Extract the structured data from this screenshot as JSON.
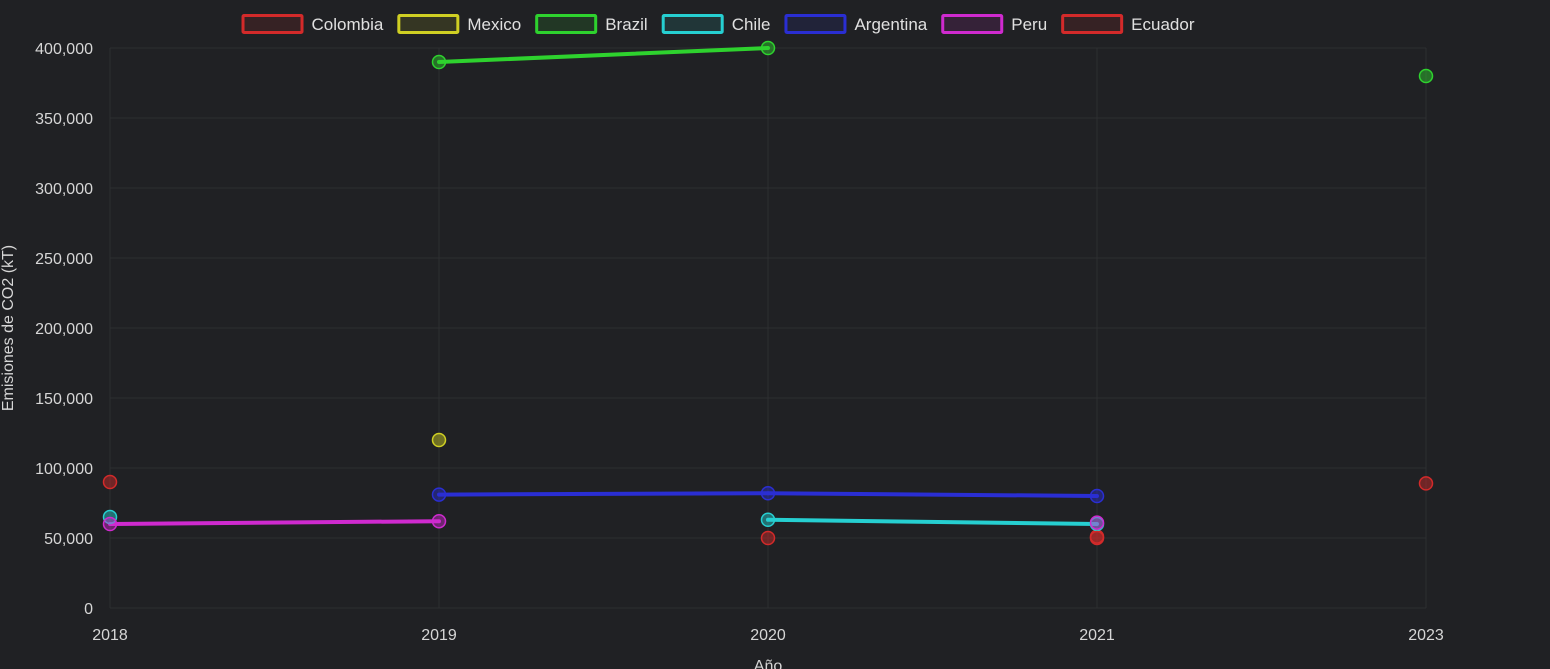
{
  "chart_data": {
    "type": "line",
    "xlabel": "Año",
    "ylabel": "Emisiones de CO2 (kT)",
    "x_categories": [
      "2018",
      "2019",
      "2020",
      "2021",
      "2023"
    ],
    "y_ticks": [
      "0",
      "50,000",
      "100,000",
      "150,000",
      "200,000",
      "250,000",
      "300,000",
      "350,000",
      "400,000"
    ],
    "ylim": [
      0,
      400000
    ],
    "grid": true,
    "legend_position": "top",
    "series": [
      {
        "name": "Colombia",
        "color": "#d32a2a",
        "points": [
          {
            "x": "2020",
            "y": 50000
          },
          {
            "x": "2021",
            "y": 51000
          }
        ]
      },
      {
        "name": "Mexico",
        "color": "#cfcf23",
        "points": [
          {
            "x": "2019",
            "y": 120000
          }
        ]
      },
      {
        "name": "Brazil",
        "color": "#2ed22e",
        "points": [
          {
            "x": "2019",
            "y": 390000
          },
          {
            "x": "2020",
            "y": 400000
          },
          {
            "x": "2023",
            "y": 380000
          }
        ],
        "line_segments": [
          [
            "2019",
            "2020"
          ]
        ]
      },
      {
        "name": "Chile",
        "color": "#26cfd1",
        "points": [
          {
            "x": "2018",
            "y": 65000
          },
          {
            "x": "2020",
            "y": 63000
          },
          {
            "x": "2021",
            "y": 60000
          }
        ],
        "line_segments": [
          [
            "2020",
            "2021"
          ]
        ]
      },
      {
        "name": "Argentina",
        "color": "#2a2ed3",
        "points": [
          {
            "x": "2019",
            "y": 81000
          },
          {
            "x": "2020",
            "y": 82000
          },
          {
            "x": "2021",
            "y": 80000
          }
        ],
        "line_segments": [
          [
            "2019",
            "2020"
          ],
          [
            "2020",
            "2021"
          ]
        ]
      },
      {
        "name": "Peru",
        "color": "#cf2acf",
        "points": [
          {
            "x": "2018",
            "y": 60000
          },
          {
            "x": "2019",
            "y": 62000
          },
          {
            "x": "2021",
            "y": 61000
          }
        ],
        "line_segments": [
          [
            "2018",
            "2019"
          ]
        ]
      },
      {
        "name": "Ecuador",
        "color": "#d32a2a",
        "points": [
          {
            "x": "2018",
            "y": 90000
          },
          {
            "x": "2021",
            "y": 50000
          },
          {
            "x": "2023",
            "y": 89000
          }
        ]
      }
    ]
  }
}
